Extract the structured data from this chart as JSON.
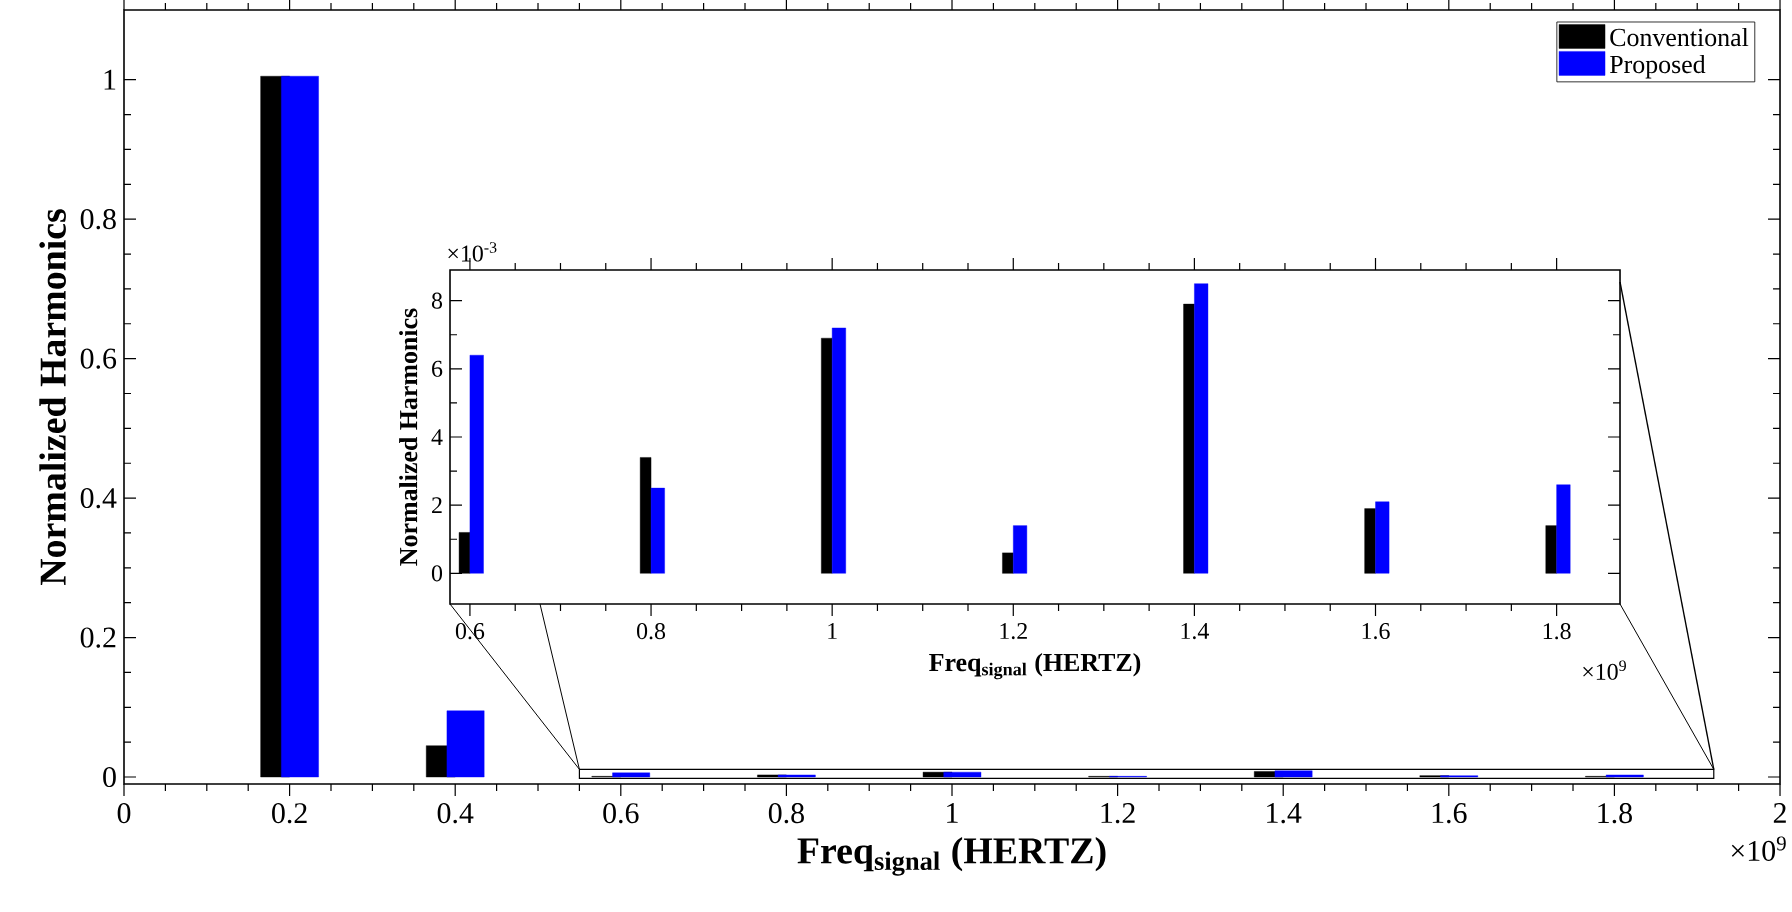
{
  "chart_data": [
    {
      "type": "bar",
      "xlabel": "**Freq$_{signal}$ (HERTZ)**",
      "ylabel": "**Normalized Harmonics**",
      "x": [
        0.2,
        0.4,
        0.6,
        0.8,
        1.0,
        1.2,
        1.4,
        1.6,
        1.8
      ],
      "series": [
        {
          "name": "Conventional",
          "color": "#000000",
          "values": [
            1.005,
            0.045,
            0.001,
            0.003,
            0.007,
            0.001,
            0.008,
            0.002,
            0.001
          ]
        },
        {
          "name": "Proposed",
          "color": "#0000ff",
          "values": [
            1.005,
            0.095,
            0.006,
            0.003,
            0.007,
            0.001,
            0.009,
            0.002,
            0.003
          ]
        }
      ],
      "xlim": [
        0,
        2
      ],
      "ylim": [
        -0.01,
        1.1
      ],
      "xticks": [
        0,
        0.2,
        0.4,
        0.6,
        0.8,
        1,
        1.2,
        1.4,
        1.6,
        1.8,
        2
      ],
      "yticks": [
        0,
        0.2,
        0.4,
        0.6,
        0.8,
        1
      ],
      "legend": "top right",
      "annotations": [
        "×10$^{9}$"
      ]
    },
    {
      "type": "bar",
      "xlabel": "**Freq$_{signal}$ (HERTZ)**",
      "ylabel": "**Normalized Harmonics**",
      "x": [
        0.6,
        0.8,
        1.0,
        1.2,
        1.4,
        1.6,
        1.8
      ],
      "series": [
        {
          "color": "#000000",
          "values": [
            1.2,
            3.4,
            6.9,
            0.6,
            7.9,
            1.9,
            1.4
          ]
        },
        {
          "color": "#0000ff",
          "values": [
            6.4,
            2.5,
            7.2,
            1.4,
            8.5,
            2.1,
            2.6
          ]
        }
      ],
      "xlim": [
        0.578,
        1.87
      ],
      "ylim": [
        -0.9,
        8.9
      ],
      "xticks": [
        0.6,
        0.8,
        1,
        1.2,
        1.4,
        1.6,
        1.8
      ],
      "yticks": [
        0,
        2,
        4,
        6,
        8
      ],
      "annotations": [
        "×10$^{-3}$",
        "×10$^{9}$"
      ]
    }
  ]
}
